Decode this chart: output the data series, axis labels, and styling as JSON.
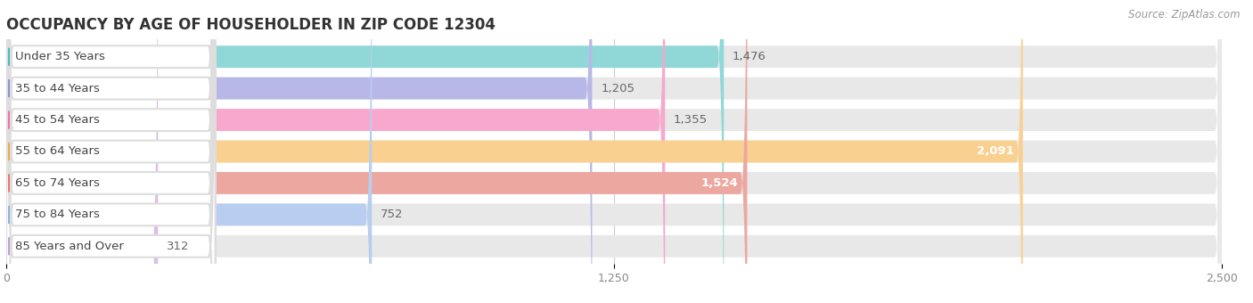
{
  "title": "OCCUPANCY BY AGE OF HOUSEHOLDER IN ZIP CODE 12304",
  "source": "Source: ZipAtlas.com",
  "categories": [
    "Under 35 Years",
    "35 to 44 Years",
    "45 to 54 Years",
    "55 to 64 Years",
    "65 to 74 Years",
    "75 to 84 Years",
    "85 Years and Over"
  ],
  "values": [
    1476,
    1205,
    1355,
    2091,
    1524,
    752,
    312
  ],
  "bar_colors": [
    "#45BFBF",
    "#9090D8",
    "#F070A8",
    "#F5A84E",
    "#E87870",
    "#90B0E8",
    "#C0A0D0"
  ],
  "bar_light_colors": [
    "#90D8D8",
    "#B8B8E8",
    "#F8A8CC",
    "#FAD090",
    "#ECA8A0",
    "#B8CEF0",
    "#D8C0E8"
  ],
  "xlim": [
    0,
    2500
  ],
  "xticks": [
    0,
    1250,
    2500
  ],
  "value_labels": [
    "1,476",
    "1,205",
    "1,355",
    "2,091",
    "1,524",
    "752",
    "312"
  ],
  "label_inside": [
    false,
    false,
    false,
    true,
    true,
    false,
    false
  ],
  "background_color": "#ffffff",
  "bar_bg_color": "#e8e8e8",
  "title_fontsize": 12,
  "label_fontsize": 9.5,
  "tick_fontsize": 9,
  "source_fontsize": 8.5
}
